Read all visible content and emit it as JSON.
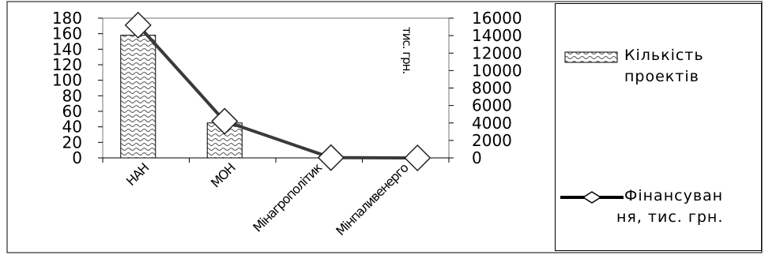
{
  "chart_data": {
    "type": "bar",
    "categories": [
      "НАН",
      "МОН",
      "Мінагрополітик",
      "Мінпаливенерго"
    ],
    "series": [
      {
        "name": "Кількість проектів",
        "type": "bar",
        "axis": "left",
        "values": [
          158,
          45,
          0,
          0
        ]
      },
      {
        "name": "Фінансування, тис. грн.",
        "type": "line",
        "axis": "right",
        "values": [
          15200,
          4200,
          30,
          0
        ]
      }
    ],
    "ylim_left": [
      0,
      180
    ],
    "yticks_left": [
      "0",
      "20",
      "40",
      "60",
      "80",
      "100",
      "120",
      "140",
      "160",
      "180"
    ],
    "ylim_right": [
      0,
      16000
    ],
    "yticks_right": [
      "0",
      "2000",
      "4000",
      "6000",
      "8000",
      "10000",
      "12000",
      "14000",
      "16000"
    ],
    "right_axis_unit": "тис. грн.",
    "legend_position": "right",
    "colors": {
      "line": "#3a3a3a",
      "bar_fill": "#ffffff",
      "bar_pattern": "#555555",
      "marker_fill": "#ffffff"
    }
  },
  "legend": {
    "bar_line1": "Кількість",
    "bar_line2": "проектів",
    "line_line1": "Фінансуван",
    "line_line2": "ня, тис. грн."
  }
}
